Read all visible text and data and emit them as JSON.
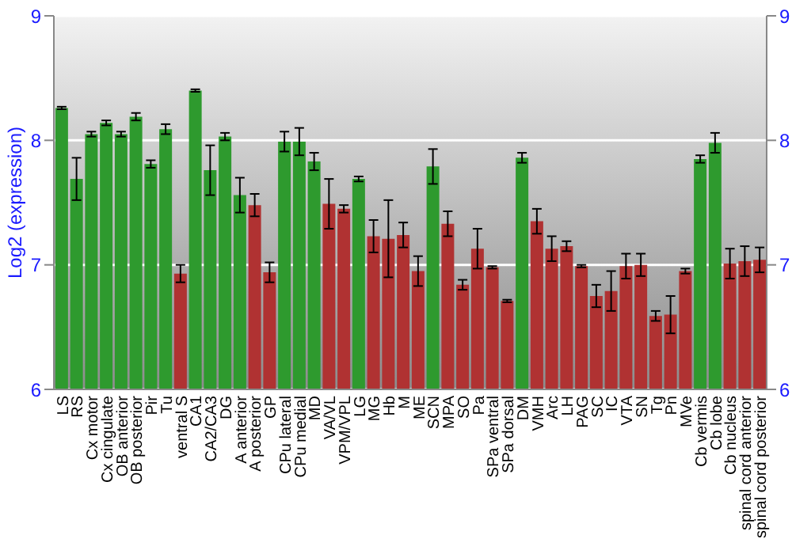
{
  "chart_data": {
    "type": "bar",
    "ylabel": "Log2 (expression)",
    "categories": [
      "LS",
      "RS",
      "Cx motor",
      "Cx cingulate",
      "OB anterior",
      "OB posterior",
      "Pir",
      "Tu",
      "ventral S",
      "CA1",
      "CA2/CA3",
      "DG",
      "A anterior",
      "A posterior",
      "GP",
      "CPu lateral",
      "CPu medial",
      "MD",
      "VA/VL",
      "VPM/VPL",
      "LG",
      "MG",
      "Hb",
      "M",
      "ME",
      "SCN",
      "MPA",
      "SO",
      "Pa",
      "SPa ventral",
      "SPa dorsal",
      "DM",
      "VMH",
      "Arc",
      "LH",
      "PAG",
      "SC",
      "IC",
      "VTA",
      "SN",
      "Tg",
      "Pn",
      "MVe",
      "Cb vermis",
      "Cb lobe",
      "Cb nucleus",
      "spinal cord anterior",
      "spinal cord posterior"
    ],
    "values": [
      8.26,
      7.69,
      8.05,
      8.14,
      8.05,
      8.19,
      7.81,
      8.09,
      6.93,
      8.4,
      7.76,
      8.03,
      7.56,
      7.48,
      6.94,
      7.99,
      7.99,
      7.83,
      7.49,
      7.45,
      7.69,
      7.23,
      7.21,
      7.24,
      6.95,
      7.79,
      7.33,
      6.84,
      7.13,
      6.98,
      6.71,
      7.86,
      7.35,
      7.13,
      7.15,
      6.99,
      6.75,
      6.79,
      6.99,
      7.0,
      6.59,
      6.6,
      6.95,
      7.85,
      7.98,
      7.01,
      7.03,
      7.04
    ],
    "errors": [
      0.01,
      0.17,
      0.02,
      0.02,
      0.02,
      0.03,
      0.03,
      0.04,
      0.07,
      0.01,
      0.2,
      0.03,
      0.14,
      0.09,
      0.08,
      0.08,
      0.11,
      0.07,
      0.2,
      0.03,
      0.02,
      0.13,
      0.31,
      0.1,
      0.12,
      0.14,
      0.1,
      0.04,
      0.16,
      0.01,
      0.01,
      0.04,
      0.1,
      0.1,
      0.04,
      0.01,
      0.09,
      0.16,
      0.1,
      0.09,
      0.04,
      0.15,
      0.02,
      0.03,
      0.08,
      0.12,
      0.12,
      0.1
    ],
    "colors": [
      "#2e9a2e",
      "#2e9a2e",
      "#2e9a2e",
      "#2e9a2e",
      "#2e9a2e",
      "#2e9a2e",
      "#2e9a2e",
      "#2e9a2e",
      "#b03232",
      "#2e9a2e",
      "#2e9a2e",
      "#2e9a2e",
      "#2e9a2e",
      "#b03232",
      "#b03232",
      "#2e9a2e",
      "#2e9a2e",
      "#2e9a2e",
      "#b03232",
      "#b03232",
      "#2e9a2e",
      "#b03232",
      "#b03232",
      "#b03232",
      "#b03232",
      "#2e9a2e",
      "#b03232",
      "#b03232",
      "#b03232",
      "#b03232",
      "#b03232",
      "#2e9a2e",
      "#b03232",
      "#b03232",
      "#b03232",
      "#b03232",
      "#b03232",
      "#b03232",
      "#b03232",
      "#b03232",
      "#b03232",
      "#b03232",
      "#b03232",
      "#2e9a2e",
      "#2e9a2e",
      "#b03232",
      "#b03232",
      "#b03232"
    ],
    "ylim": [
      6,
      9
    ],
    "yticks": [
      6,
      7,
      8,
      9
    ],
    "y2lim": [
      6,
      9
    ],
    "y2ticks": [
      6,
      7,
      8,
      9
    ],
    "grid": "y"
  }
}
